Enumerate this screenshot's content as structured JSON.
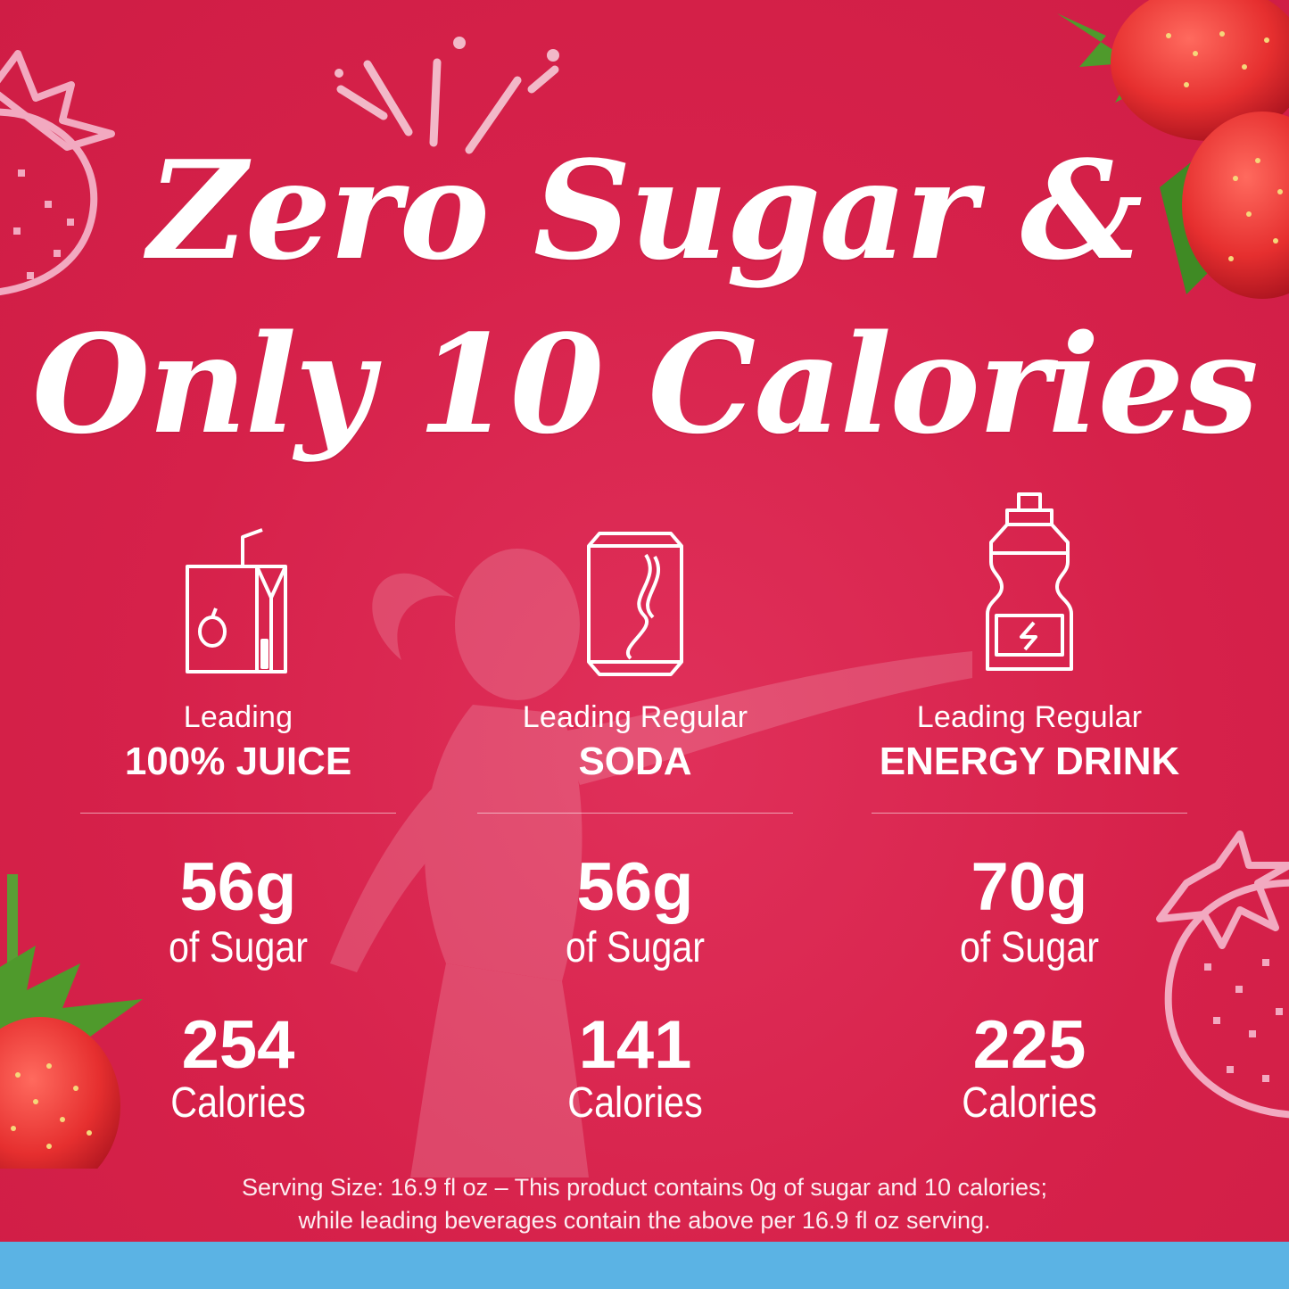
{
  "headline": {
    "line1": "Zero Sugar &",
    "line2": "Only 10 Calories"
  },
  "colors": {
    "background": "#d6214a",
    "text": "#ffffff",
    "strawberry_red": "#e8363f",
    "leaf_green": "#4f9a2c",
    "outline_pink": "#f2a9c0",
    "bottom_bar": "#5bb3e4"
  },
  "comparisons": [
    {
      "icon": "juice-box-icon",
      "label_sub": "Leading",
      "label_main": "100% JUICE",
      "sugar_value": "56g",
      "sugar_unit": "of Sugar",
      "calories_value": "254",
      "calories_unit": "Calories"
    },
    {
      "icon": "soda-can-icon",
      "label_sub": "Leading Regular",
      "label_main": "SODA",
      "sugar_value": "56g",
      "sugar_unit": "of Sugar",
      "calories_value": "141",
      "calories_unit": "Calories"
    },
    {
      "icon": "energy-drink-bottle-icon",
      "label_sub": "Leading Regular",
      "label_main": "ENERGY DRINK",
      "sugar_value": "70g",
      "sugar_unit": "of Sugar",
      "calories_value": "225",
      "calories_unit": "Calories"
    }
  ],
  "footnote": {
    "line1": "Serving Size: 16.9 fl oz – This product contains 0g of sugar and 10 calories;",
    "line2": "while leading beverages contain the above per 16.9 fl oz serving."
  }
}
